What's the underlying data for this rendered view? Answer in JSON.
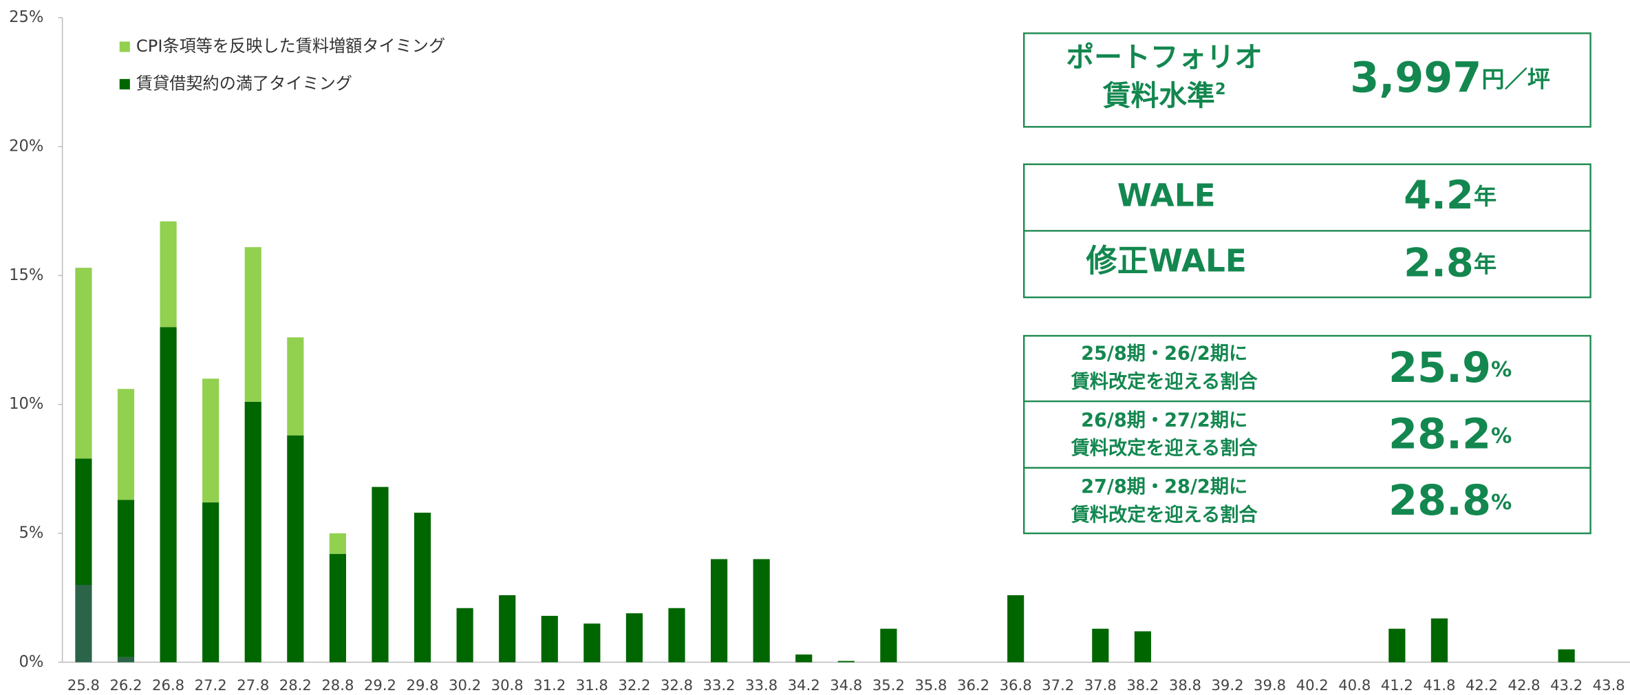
{
  "chart_data": {
    "type": "bar",
    "stacked": true,
    "categories": [
      "25.8",
      "26.2",
      "26.8",
      "27.2",
      "27.8",
      "28.2",
      "28.8",
      "29.2",
      "29.8",
      "30.2",
      "30.8",
      "31.2",
      "31.8",
      "32.2",
      "32.8",
      "33.2",
      "33.8",
      "34.2",
      "34.8",
      "35.2",
      "35.8",
      "36.2",
      "36.8",
      "37.2",
      "37.8",
      "38.2",
      "38.8",
      "39.2",
      "39.8",
      "40.2",
      "40.8",
      "41.2",
      "41.8",
      "42.2",
      "42.8",
      "43.2",
      "43.8"
    ],
    "series": [
      {
        "color": "#2b6449",
        "values": [
          3.0,
          0.2,
          null,
          null,
          null,
          null,
          null,
          null,
          null,
          null,
          null,
          null,
          null,
          null,
          null,
          null,
          null,
          null,
          null,
          null,
          null,
          null,
          null,
          null,
          null,
          null,
          null,
          null,
          null,
          null,
          null,
          null,
          null,
          null,
          null,
          null,
          null
        ]
      },
      {
        "name": "賃貸借契約の満了タイミング",
        "color": "#006600",
        "values": [
          4.9,
          6.1,
          13.0,
          6.2,
          10.1,
          8.8,
          4.2,
          6.8,
          5.8,
          2.1,
          2.6,
          1.8,
          1.5,
          1.9,
          2.1,
          4.0,
          4.0,
          0.3,
          0.05,
          1.3,
          null,
          null,
          2.6,
          null,
          1.3,
          1.2,
          null,
          null,
          null,
          null,
          null,
          1.3,
          1.7,
          null,
          null,
          0.5,
          null
        ]
      },
      {
        "name": "CPI条項等を反映した賃料増額タイミング",
        "color": "#92d050",
        "values": [
          7.4,
          4.3,
          4.1,
          4.8,
          6.0,
          3.8,
          0.8,
          null,
          null,
          null,
          null,
          null,
          null,
          null,
          null,
          null,
          null,
          null,
          null,
          null,
          null,
          null,
          null,
          null,
          null,
          null,
          null,
          null,
          null,
          null,
          null,
          null,
          null,
          null,
          null,
          null,
          null
        ]
      }
    ],
    "ylim": [
      0,
      25
    ],
    "yticks": [
      {
        "value": 0,
        "label": "0%"
      },
      {
        "value": 5,
        "label": "5%"
      },
      {
        "value": 10,
        "label": "10%"
      },
      {
        "value": 15,
        "label": "15%"
      },
      {
        "value": 20,
        "label": "20%"
      },
      {
        "value": 25,
        "label": "25%"
      }
    ],
    "legend": "upper left"
  },
  "info_panels": {
    "rent": {
      "label_lines": [
        "ポートフォリオ",
        "賃料水準"
      ],
      "superscript": "2",
      "value": "3,997",
      "unit": "円／坪"
    },
    "wale": [
      {
        "label": "WALE",
        "value": "4.2",
        "unit": "年"
      },
      {
        "label": "修正WALE",
        "value": "2.8",
        "unit": "年"
      }
    ],
    "ratios": [
      {
        "label_lines": [
          "25/8期・26/2期に",
          "賃料改定を迎える割合"
        ],
        "value": "25.9",
        "unit": "%"
      },
      {
        "label_lines": [
          "26/8期・27/2期に",
          "賃料改定を迎える割合"
        ],
        "value": "28.2",
        "unit": "%"
      },
      {
        "label_lines": [
          "27/8期・28/2期に",
          "賃料改定を迎える割合"
        ],
        "value": "28.8",
        "unit": "%"
      }
    ]
  }
}
